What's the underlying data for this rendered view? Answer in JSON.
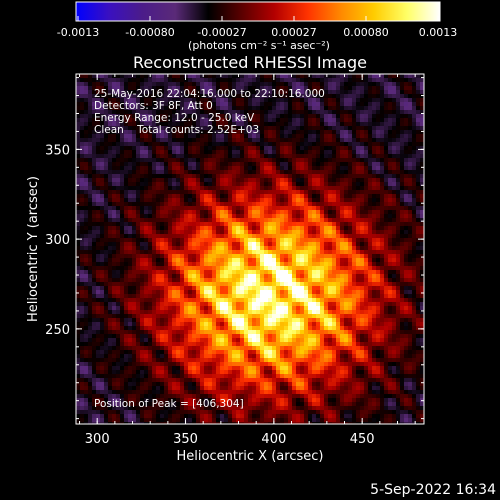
{
  "colorbar": {
    "ticks": [
      "-0.0013",
      "-0.00080",
      "-0.00027",
      "0.00027",
      "0.00080",
      "0.0013"
    ],
    "units_text": "(photons cm⁻² s⁻¹ asec⁻²)",
    "range": [
      -0.0013,
      0.0013
    ]
  },
  "chart_data": {
    "type": "heatmap",
    "title": "Reconstructed RHESSI Image",
    "xlabel": "Heliocentric X (arcsec)",
    "ylabel": "Heliocentric Y (arcsec)",
    "xlim": [
      288,
      485
    ],
    "ylim": [
      197,
      392
    ],
    "xticks": [
      "300",
      "350",
      "400",
      "450"
    ],
    "yticks": [
      "250",
      "300",
      "350"
    ],
    "xtick_values": [
      300,
      350,
      400,
      450
    ],
    "ytick_values": [
      250,
      300,
      350
    ],
    "annotations": [
      "25-May-2016 22:04:16.000 to 22:10:16.000",
      "Detectors: 3F 8F, Att 0",
      "Energy Range: 12.0 - 25.0 keV",
      "Clean    Total counts: 2.52E+03"
    ],
    "peak_label": "Position of Peak = [406,304]",
    "peak": [
      406,
      304
    ],
    "colormap": [
      "#0000ff",
      "#3a10c0",
      "#4b1c8a",
      "#5a2a78",
      "#000000",
      "#5a0000",
      "#b30000",
      "#ff3300",
      "#ff8800",
      "#ffcc00",
      "#ffff66",
      "#ffffff"
    ]
  },
  "footer": {
    "date": "5-Sep-2022 16:34"
  }
}
